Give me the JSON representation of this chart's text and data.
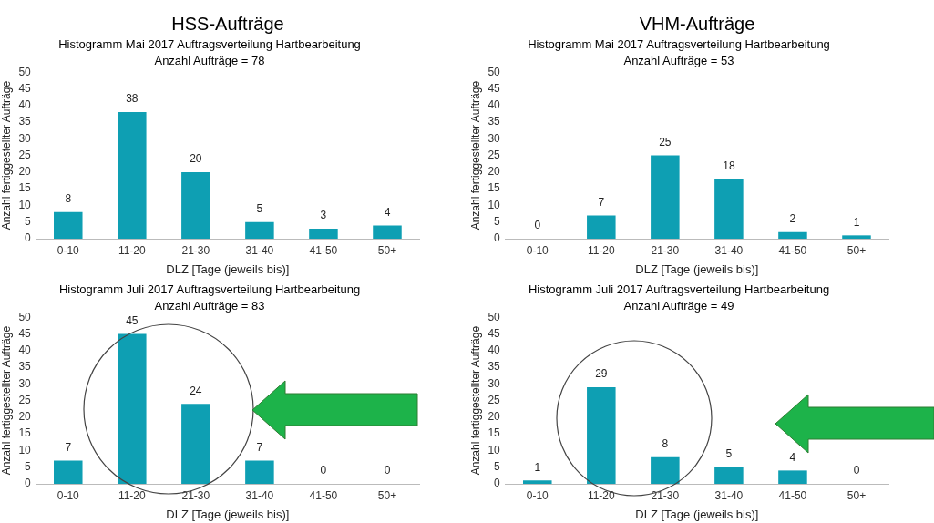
{
  "chart_data": [
    {
      "type": "bar",
      "title": "Histogramm Mai 2017 Auftragsverteilung Hartbearbeitung",
      "subtitle": "Anzahl Aufträge = 78",
      "xlabel": "DLZ [Tage (jeweils bis)]",
      "ylabel": "Anzahl fertiggestellter Aufträge",
      "annotations": [
        "HSS-Aufträge"
      ],
      "categories": [
        "0-10",
        "11-20",
        "21-30",
        "31-40",
        "41-50",
        "50+"
      ],
      "values": [
        8,
        38,
        20,
        5,
        3,
        4
      ],
      "color": "#0e9fb3",
      "ylim": [
        0,
        50
      ],
      "yticks": [
        0,
        5,
        10,
        15,
        20,
        25,
        30,
        35,
        40,
        45,
        50
      ],
      "data_labels": true,
      "grid": false,
      "legend": false
    },
    {
      "type": "bar",
      "title": "Histogramm Mai 2017 Auftragsverteilung Hartbearbeitung",
      "subtitle": "Anzahl Aufträge = 53",
      "xlabel": "DLZ [Tage (jeweils bis)]",
      "ylabel": "Anzahl fertiggestellter Aufträge",
      "annotations": [
        "VHM-Aufträge"
      ],
      "categories": [
        "0-10",
        "11-20",
        "21-30",
        "31-40",
        "41-50",
        "50+"
      ],
      "values": [
        0,
        7,
        25,
        18,
        2,
        1
      ],
      "color": "#0e9fb3",
      "ylim": [
        0,
        50
      ],
      "yticks": [
        0,
        5,
        10,
        15,
        20,
        25,
        30,
        35,
        40,
        45,
        50
      ],
      "data_labels": true,
      "grid": false,
      "legend": false
    },
    {
      "type": "bar",
      "title": "Histogramm Juli 2017 Auftragsverteilung Hartbearbeitung",
      "subtitle": "Anzahl Aufträge = 83",
      "xlabel": "DLZ [Tage (jeweils bis)]",
      "ylabel": "Anzahl fertiggestellter Aufträge",
      "categories": [
        "0-10",
        "11-20",
        "21-30",
        "31-40",
        "41-50",
        "50+"
      ],
      "values": [
        7,
        45,
        24,
        7,
        0,
        0
      ],
      "color": "#0e9fb3",
      "ylim": [
        0,
        50
      ],
      "yticks": [
        0,
        5,
        10,
        15,
        20,
        25,
        30,
        35,
        40,
        45,
        50
      ],
      "data_labels": true,
      "grid": false,
      "legend": false
    },
    {
      "type": "bar",
      "title": "Histogramm Juli 2017 Auftragsverteilung Hartbearbeitung",
      "subtitle": "Anzahl Aufträge = 49",
      "xlabel": "DLZ [Tage (jeweils bis)]",
      "ylabel": "Anzahl fertiggestellter Aufträge",
      "categories": [
        "0-10",
        "11-20",
        "21-30",
        "31-40",
        "41-50",
        "50+"
      ],
      "values": [
        1,
        29,
        8,
        5,
        4,
        0
      ],
      "color": "#0e9fb3",
      "ylim": [
        0,
        50
      ],
      "yticks": [
        0,
        5,
        10,
        15,
        20,
        25,
        30,
        35,
        40,
        45,
        50
      ],
      "data_labels": true,
      "grid": false,
      "legend": false
    }
  ]
}
